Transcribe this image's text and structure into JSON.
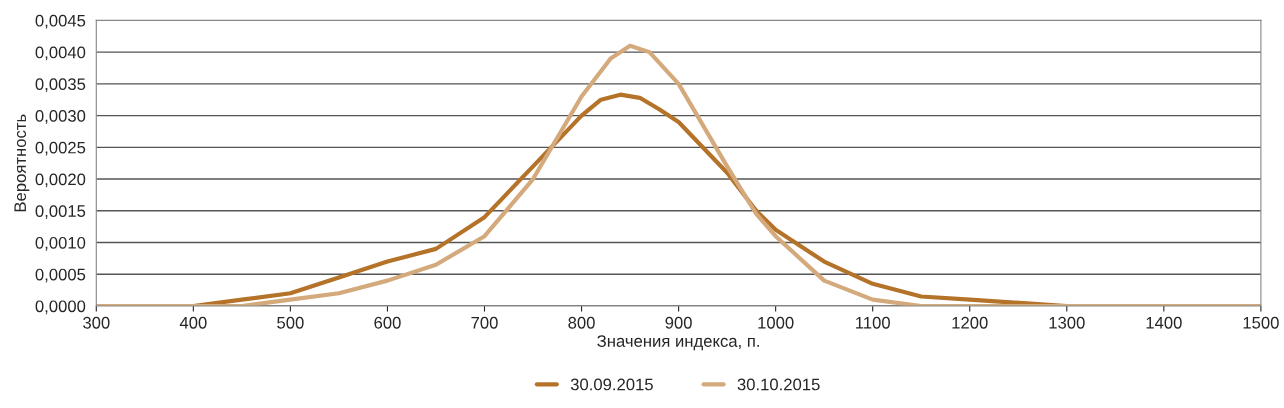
{
  "chart_data": {
    "type": "line",
    "xlabel": "Значения индекса, п.",
    "ylabel": "Вероятность",
    "xlim": [
      300,
      1500
    ],
    "xticks": [
      300,
      400,
      500,
      600,
      700,
      800,
      900,
      1000,
      1100,
      1200,
      1300,
      1400,
      1500
    ],
    "ylim": [
      0,
      0.0045
    ],
    "yticks": [
      {
        "value": 0,
        "label": "0,0000"
      },
      {
        "value": 0.0005,
        "label": "0,0005"
      },
      {
        "value": 0.001,
        "label": "0,0010"
      },
      {
        "value": 0.0015,
        "label": "0,0015"
      },
      {
        "value": 0.002,
        "label": "0,0020"
      },
      {
        "value": 0.0025,
        "label": "0,0025"
      },
      {
        "value": 0.003,
        "label": "0,0030"
      },
      {
        "value": 0.0035,
        "label": "0,0035"
      },
      {
        "value": 0.004,
        "label": "0,0040"
      },
      {
        "value": 0.0045,
        "label": "0,0045"
      }
    ],
    "grid": "y",
    "legend": "bottom",
    "marker": "none",
    "line_style": "solid",
    "series": [
      {
        "name": "30.09.2015",
        "color": "#b5732a",
        "x": [
          300,
          400,
          450,
          500,
          550,
          600,
          650,
          700,
          750,
          800,
          820,
          840,
          860,
          880,
          900,
          950,
          980,
          1000,
          1050,
          1100,
          1150,
          1200,
          1300,
          1400,
          1500
        ],
        "values": [
          0,
          0,
          0.0001,
          0.0002,
          0.00045,
          0.0007,
          0.0009,
          0.0014,
          0.0022,
          0.003,
          0.00325,
          0.00333,
          0.00328,
          0.0031,
          0.0029,
          0.0021,
          0.0015,
          0.0012,
          0.0007,
          0.00035,
          0.00015,
          0.0001,
          0,
          0,
          0
        ]
      },
      {
        "name": "30.10.2015",
        "color": "#d4aa7d",
        "x": [
          300,
          450,
          500,
          550,
          600,
          650,
          700,
          750,
          800,
          830,
          850,
          870,
          900,
          950,
          980,
          1000,
          1050,
          1100,
          1150,
          1200,
          1300,
          1500
        ],
        "values": [
          0,
          0,
          0.0001,
          0.0002,
          0.0004,
          0.00065,
          0.0011,
          0.002,
          0.0033,
          0.0039,
          0.0041,
          0.004,
          0.0035,
          0.0022,
          0.00145,
          0.0011,
          0.0004,
          0.0001,
          0,
          0,
          0,
          0
        ]
      }
    ]
  }
}
